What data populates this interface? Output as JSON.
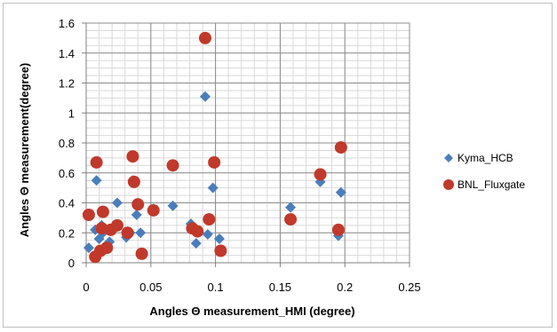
{
  "chart_data": {
    "type": "scatter",
    "title": "",
    "xlabel": "Angles Θ measurement_HMI (degree)",
    "ylabel": "Angles Θ measurement(degree)",
    "xlim": [
      0,
      0.25
    ],
    "ylim": [
      0,
      1.6
    ],
    "x_ticks": [
      "0",
      "0.05",
      "0.1",
      "0.15",
      "0.2",
      "0.25"
    ],
    "y_ticks": [
      "0",
      "0.2",
      "0.4",
      "0.6",
      "0.8",
      "1",
      "1.2",
      "1.4",
      "1.6"
    ],
    "x_tick_values": [
      0,
      0.05,
      0.1,
      0.15,
      0.2,
      0.25
    ],
    "y_tick_values": [
      0,
      0.2,
      0.4,
      0.6,
      0.8,
      1.0,
      1.2,
      1.4,
      1.6
    ],
    "grid": true,
    "minor_grid": true,
    "legend_position": "right",
    "series": [
      {
        "name": "Kyma_HCB",
        "marker": "diamond",
        "color": "#4a7ebb",
        "points": [
          [
            0.002,
            0.1
          ],
          [
            0.007,
            0.22
          ],
          [
            0.008,
            0.55
          ],
          [
            0.01,
            0.16
          ],
          [
            0.012,
            0.25
          ],
          [
            0.013,
            0.2
          ],
          [
            0.015,
            0.09
          ],
          [
            0.018,
            0.14
          ],
          [
            0.024,
            0.4
          ],
          [
            0.031,
            0.17
          ],
          [
            0.034,
            0.2
          ],
          [
            0.036,
            0.55
          ],
          [
            0.039,
            0.32
          ],
          [
            0.042,
            0.2
          ],
          [
            0.052,
            0.36
          ],
          [
            0.067,
            0.38
          ],
          [
            0.081,
            0.26
          ],
          [
            0.085,
            0.13
          ],
          [
            0.092,
            1.11
          ],
          [
            0.094,
            0.19
          ],
          [
            0.098,
            0.5
          ],
          [
            0.103,
            0.16
          ],
          [
            0.158,
            0.37
          ],
          [
            0.181,
            0.54
          ],
          [
            0.195,
            0.18
          ],
          [
            0.197,
            0.47
          ]
        ]
      },
      {
        "name": "BNL_Fluxgate",
        "marker": "circle",
        "color": "#c0392b",
        "points": [
          [
            0.002,
            0.32
          ],
          [
            0.007,
            0.04
          ],
          [
            0.008,
            0.67
          ],
          [
            0.011,
            0.08
          ],
          [
            0.012,
            0.23
          ],
          [
            0.013,
            0.34
          ],
          [
            0.016,
            0.1
          ],
          [
            0.019,
            0.22
          ],
          [
            0.024,
            0.25
          ],
          [
            0.032,
            0.2
          ],
          [
            0.036,
            0.71
          ],
          [
            0.037,
            0.54
          ],
          [
            0.04,
            0.39
          ],
          [
            0.043,
            0.06
          ],
          [
            0.052,
            0.35
          ],
          [
            0.067,
            0.65
          ],
          [
            0.082,
            0.23
          ],
          [
            0.086,
            0.21
          ],
          [
            0.092,
            1.5
          ],
          [
            0.095,
            0.29
          ],
          [
            0.099,
            0.67
          ],
          [
            0.104,
            0.08
          ],
          [
            0.158,
            0.29
          ],
          [
            0.181,
            0.59
          ],
          [
            0.195,
            0.22
          ],
          [
            0.197,
            0.77
          ]
        ]
      }
    ]
  }
}
